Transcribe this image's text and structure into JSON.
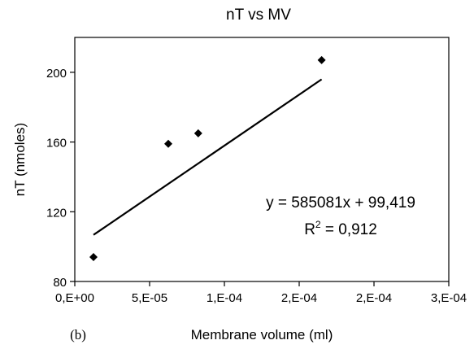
{
  "chart_data": {
    "type": "scatter",
    "title": "nT vs MV",
    "xlabel": "Membrane volume (ml)",
    "ylabel": "nT (nmoles)",
    "panel_label": "(b)",
    "xlim": [
      0,
      0.00025
    ],
    "ylim": [
      80,
      220
    ],
    "x_ticks": [
      0,
      5e-05,
      0.0001,
      0.00015,
      0.0002,
      0.00025
    ],
    "x_tick_labels": [
      "0,E+00",
      "5,E-05",
      "1,E-04",
      "2,E-04",
      "2,E-04",
      "3,E-04"
    ],
    "y_ticks": [
      80,
      120,
      160,
      200
    ],
    "y_tick_labels": [
      "80",
      "120",
      "160",
      "200"
    ],
    "grid": false,
    "legend": "none",
    "marker": "diamond",
    "marker_color": "#000000",
    "series": [
      {
        "x": [
          1.25e-05,
          6.25e-05,
          8.25e-05,
          0.000165
        ],
        "y": [
          94,
          159,
          165,
          207
        ]
      }
    ],
    "trendline": {
      "slope": 585081,
      "intercept": 99.419,
      "x_range": [
        1.25e-05,
        0.000165
      ],
      "equation_label": "y = 585081x + 99,419",
      "r2_label_prefix": "R",
      "r2_label_sup": "2",
      "r2_label_suffix": " = 0,912"
    }
  }
}
